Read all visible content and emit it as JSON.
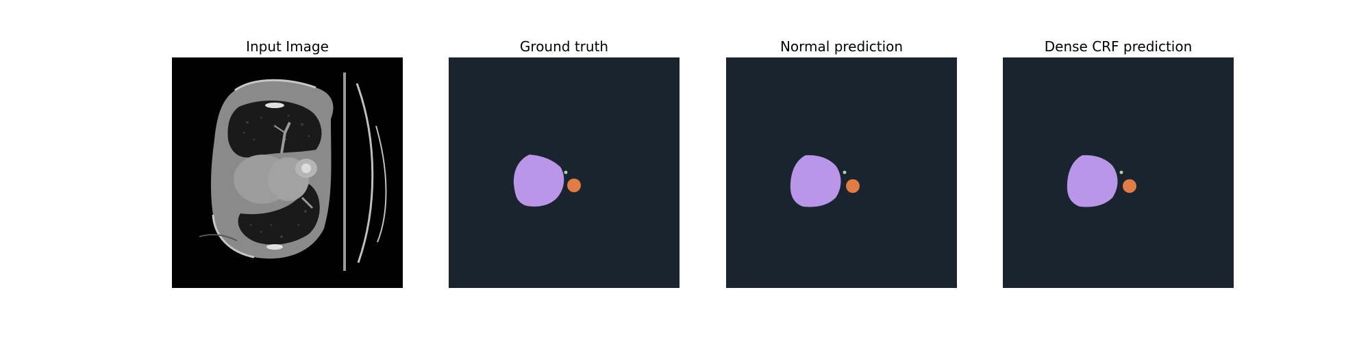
{
  "panels": [
    {
      "title": "Input Image",
      "kind": "ct-scan"
    },
    {
      "title": "Ground truth",
      "kind": "segmentation-mask"
    },
    {
      "title": "Normal prediction",
      "kind": "segmentation-mask"
    },
    {
      "title": "Dense CRF prediction",
      "kind": "segmentation-mask"
    }
  ],
  "colors": {
    "mask_background": "#19242f",
    "class_large": "#b996e8",
    "class_small": "#e07c44",
    "class_tiny": "#a6d6a8"
  }
}
